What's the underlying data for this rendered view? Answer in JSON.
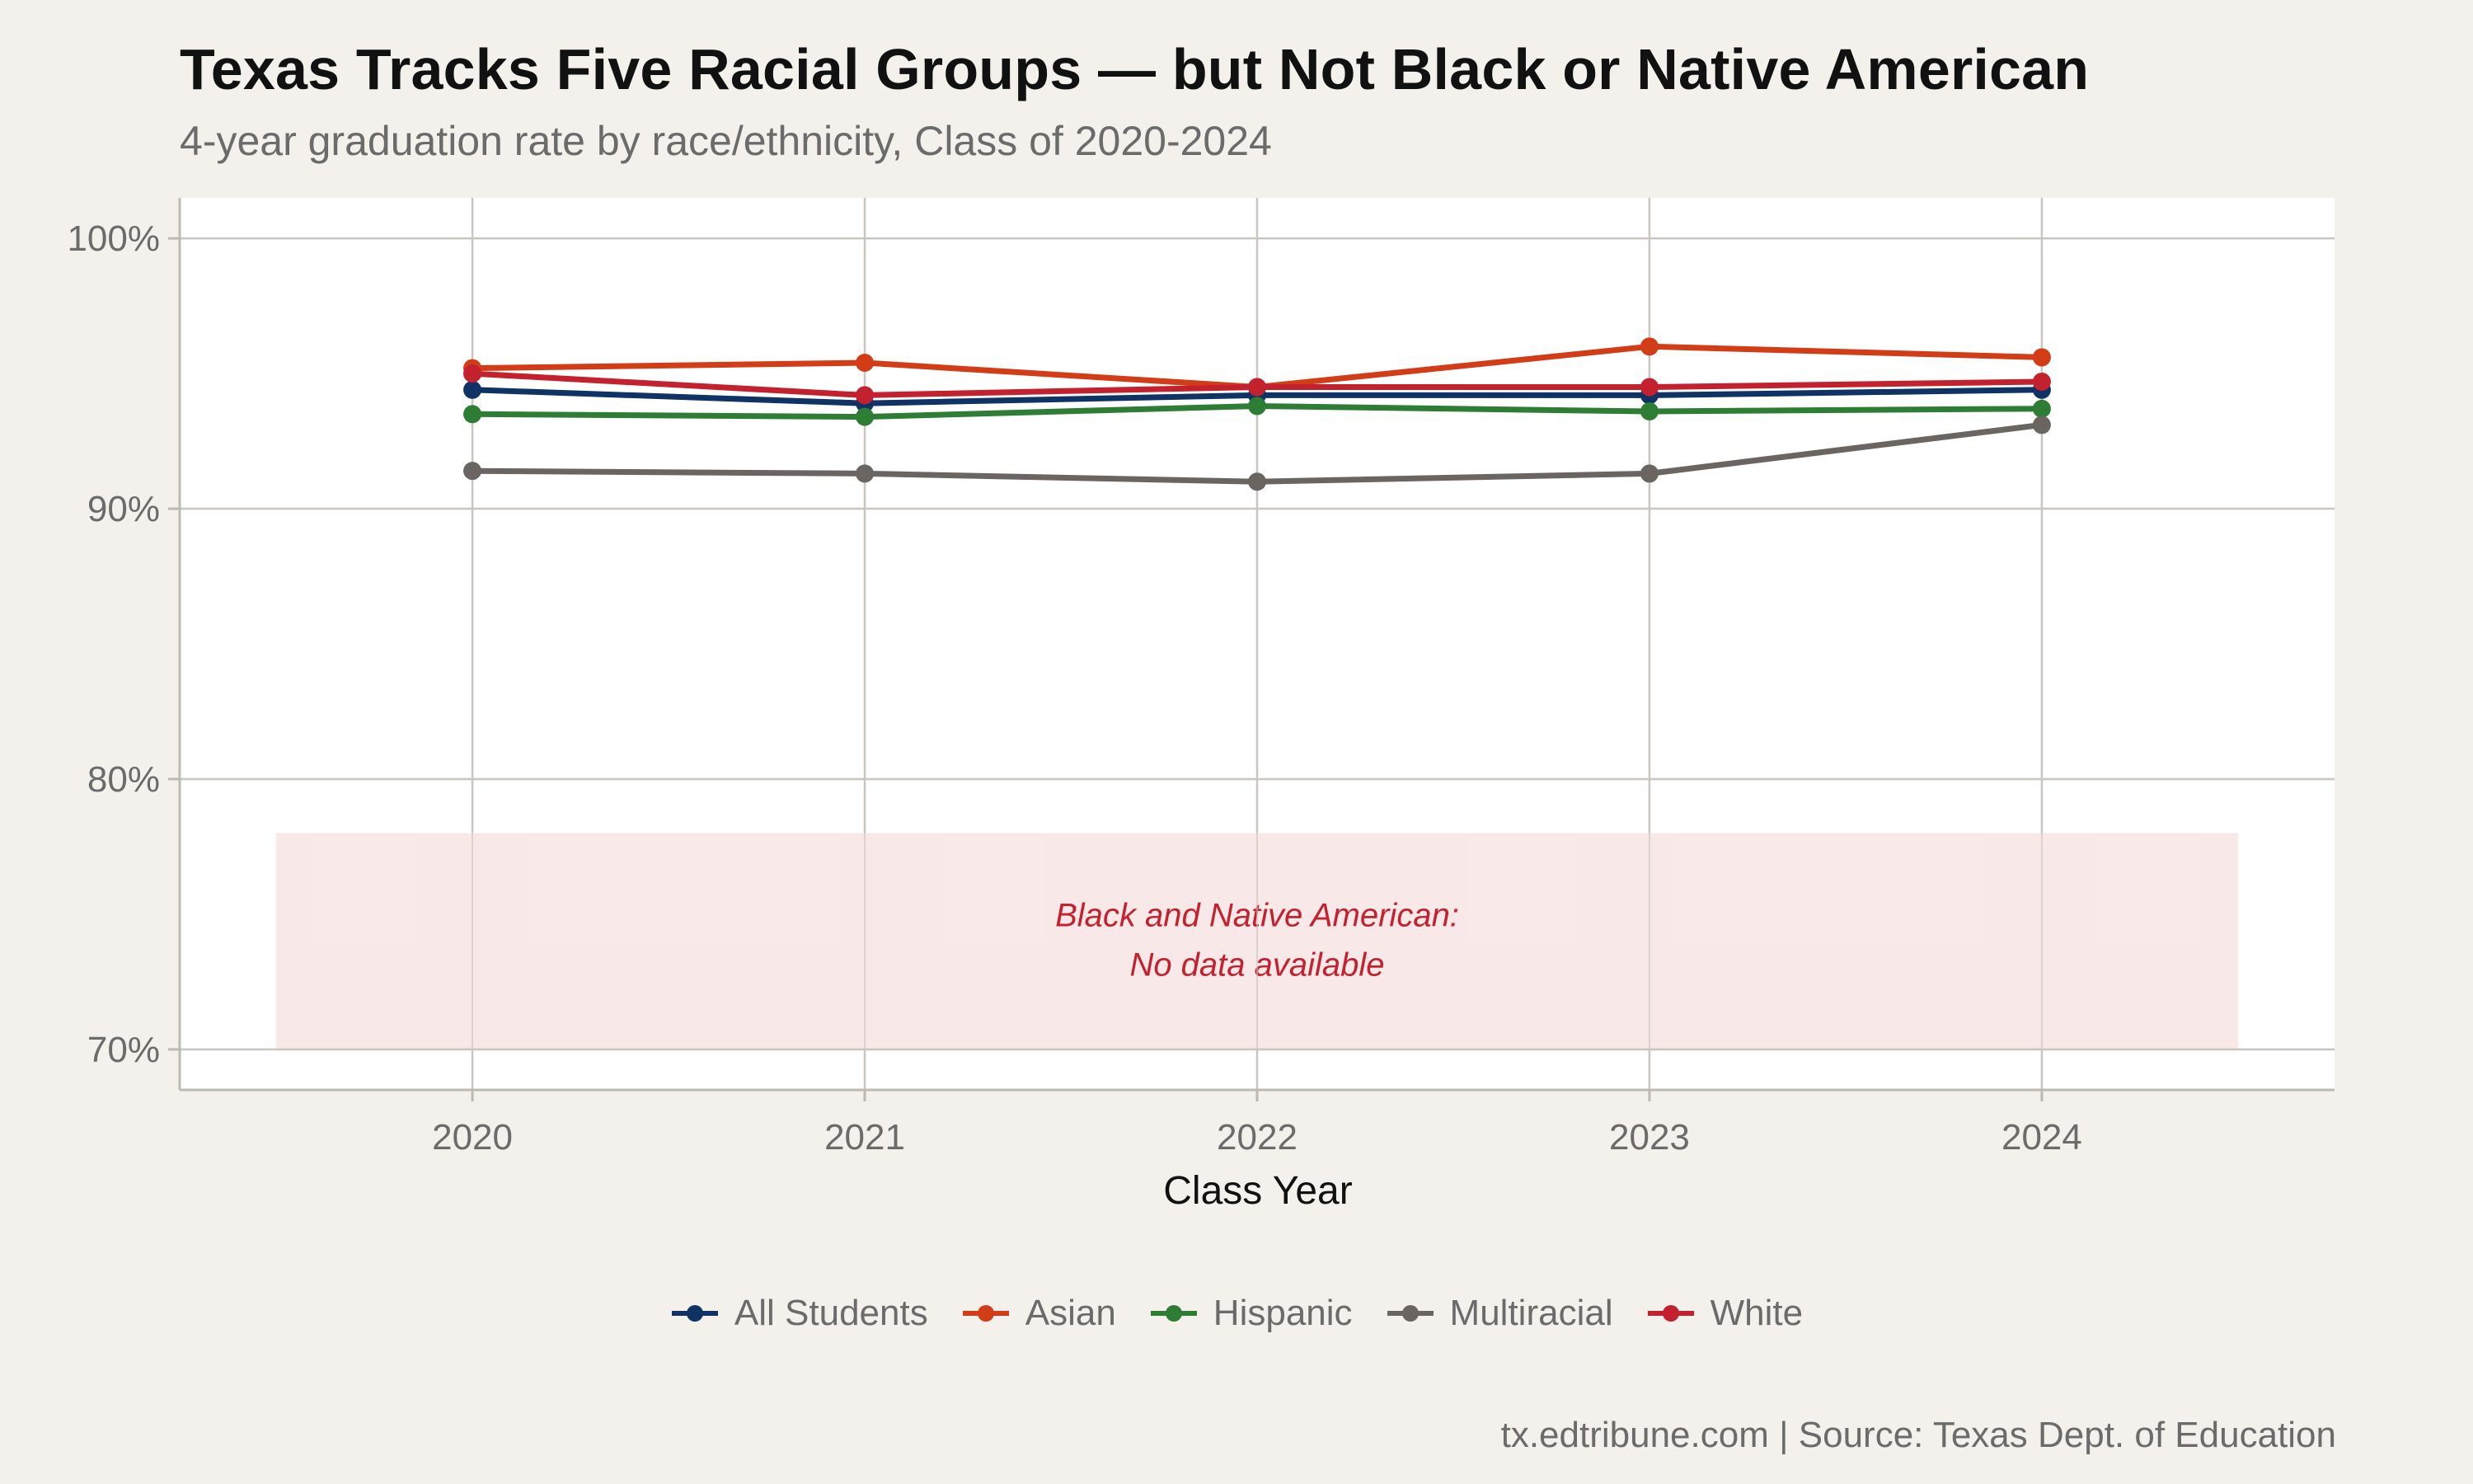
{
  "title": "Texas Tracks Five Racial Groups — but Not Black or Native American",
  "subtitle": "4-year graduation rate by race/ethnicity, Class of 2020-2024",
  "caption": "tx.edtribune.com | Source: Texas Dept. of Education",
  "chart_data": {
    "type": "line",
    "title": "Texas Tracks Five Racial Groups — but Not Black or Native American",
    "subtitle": "4-year graduation rate by race/ethnicity, Class of 2020-2024",
    "xlabel": "Class Year",
    "ylabel": "",
    "x": [
      2020,
      2021,
      2022,
      2023,
      2024
    ],
    "x_tick_labels": [
      "2020",
      "2021",
      "2022",
      "2023",
      "2024"
    ],
    "ylim": [
      68.5,
      101.5
    ],
    "y_ticks": [
      70,
      80,
      90,
      100
    ],
    "y_tick_labels": [
      "70%",
      "80%",
      "90%",
      "100%"
    ],
    "grid": true,
    "legend_position": "bottom",
    "series": [
      {
        "name": "All Students",
        "color": "#0e3364",
        "values": [
          94.4,
          93.9,
          94.2,
          94.2,
          94.4
        ]
      },
      {
        "name": "Asian",
        "color": "#d23c16",
        "values": [
          95.2,
          95.4,
          94.5,
          96.0,
          95.6
        ]
      },
      {
        "name": "Hispanic",
        "color": "#2e7d35",
        "values": [
          93.5,
          93.4,
          93.8,
          93.6,
          93.7
        ]
      },
      {
        "name": "Multiracial",
        "color": "#6b6562",
        "values": [
          91.4,
          91.3,
          91.0,
          91.3,
          93.1
        ]
      },
      {
        "name": "White",
        "color": "#c4212f",
        "values": [
          95.0,
          94.2,
          94.5,
          94.5,
          94.7
        ]
      }
    ],
    "annotation": {
      "lines": [
        "Black and Native American:",
        "No data available"
      ],
      "color": "#c4212f",
      "band_color": "#f8e6e6",
      "x_range": [
        2019.5,
        2024.5
      ],
      "y_range": [
        70,
        78
      ],
      "label_x": 2022,
      "label_y": 74
    }
  }
}
